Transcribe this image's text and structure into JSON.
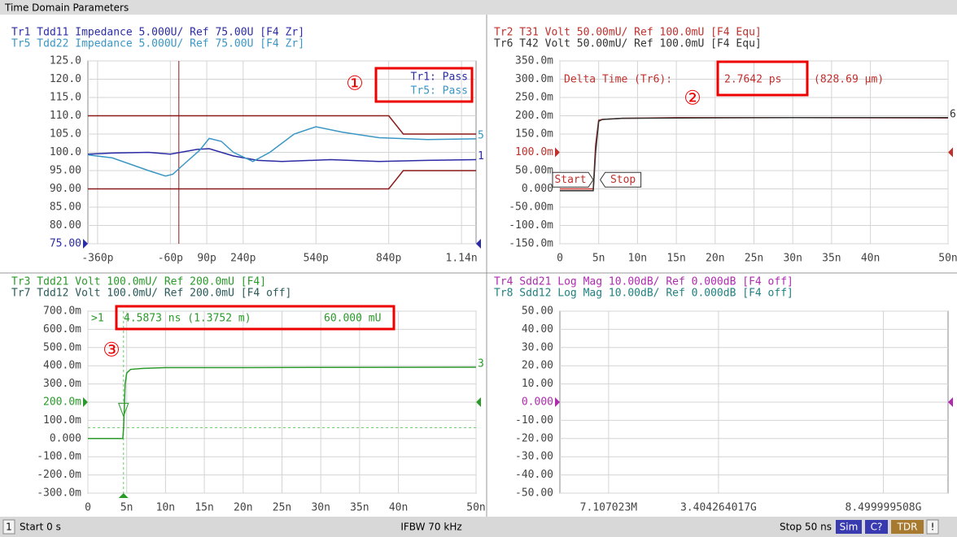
{
  "window": {
    "title": "Time Domain Parameters",
    "status": [
      "1",
      "Start 0 s",
      "IFBW 70 kHz",
      "Stop 50 ns"
    ],
    "buttons": [
      "Sim",
      "C?",
      "TDR",
      "!"
    ]
  },
  "chart_data": [
    {
      "type": "line",
      "xlim": [
        -400,
        1200
      ],
      "ylim": [
        75,
        125
      ],
      "ref_value": 75,
      "yticks": [
        {
          "value": 125,
          "label": "125.0"
        },
        {
          "value": 120,
          "label": "120.0"
        },
        {
          "value": 115,
          "label": "115.0"
        },
        {
          "value": 110,
          "label": "110.0"
        },
        {
          "value": 105,
          "label": "105.0"
        },
        {
          "value": 100,
          "label": "100.0"
        },
        {
          "value": 95,
          "label": "95.00"
        },
        {
          "value": 90,
          "label": "90.00"
        },
        {
          "value": 85,
          "label": "85.00"
        },
        {
          "value": 80,
          "label": "80.00"
        },
        {
          "value": 75,
          "label": "75.00"
        }
      ],
      "xticks": [
        {
          "value": -360,
          "label": "-360p"
        },
        {
          "value": -60,
          "label": "-60p"
        },
        {
          "value": 90,
          "label": "90p"
        },
        {
          "value": 240,
          "label": "240p"
        },
        {
          "value": 540,
          "label": "540p"
        },
        {
          "value": 840,
          "label": "840p"
        },
        {
          "value": 1140,
          "label": "1.14n"
        }
      ],
      "series": [
        {
          "name": "Tr1 Tdd11 Impedance 5.000U/ Ref 75.00U [F4 Zr]",
          "color": "#2b2ba6",
          "end_label": "1",
          "x": [
            -400,
            -300,
            -150,
            -60,
            50,
            100,
            200,
            300,
            400,
            600,
            800,
            1000,
            1200
          ],
          "values": [
            99.5,
            99.8,
            100,
            99.5,
            100.8,
            101,
            99,
            97.8,
            97.5,
            98,
            97.5,
            97.8,
            98
          ]
        },
        {
          "name": "Tr5 Tdd22 Impedance 5.000U/ Ref 75.00U [F4 Zr]",
          "color": "#3a96c4",
          "end_label": "5",
          "x": [
            -400,
            -300,
            -150,
            -80,
            -50,
            0,
            60,
            100,
            150,
            200,
            280,
            350,
            450,
            540,
            650,
            800,
            1000,
            1200
          ],
          "values": [
            99.3,
            98.5,
            95,
            93.5,
            94,
            97,
            100.5,
            103.8,
            103,
            100,
            97.5,
            100,
            105,
            107,
            105.5,
            104,
            103.5,
            103.7
          ]
        }
      ],
      "limits": {
        "color": "#8b1a1a",
        "lines": [
          {
            "x": [
              -400,
              840,
              900,
              1200
            ],
            "values": [
              110,
              110,
              105,
              105
            ]
          },
          {
            "x": [
              -400,
              840,
              900,
              1200
            ],
            "values": [
              90,
              90,
              95,
              95
            ]
          }
        ]
      },
      "marker_x": -25,
      "limit_test": [
        "Tr1: Pass",
        "Tr5: Pass"
      ],
      "callout": "①"
    },
    {
      "type": "line",
      "xlim": [
        0,
        50
      ],
      "ylim": [
        -0.15,
        0.35
      ],
      "ref_value": 0.1,
      "yticks": [
        {
          "value": 0.35,
          "label": "350.0m"
        },
        {
          "value": 0.3,
          "label": "300.0m"
        },
        {
          "value": 0.25,
          "label": "250.0m"
        },
        {
          "value": 0.2,
          "label": "200.0m"
        },
        {
          "value": 0.15,
          "label": "150.0m"
        },
        {
          "value": 0.1,
          "label": "100.0m"
        },
        {
          "value": 0.05,
          "label": "50.00m"
        },
        {
          "value": 0,
          "label": "0.000"
        },
        {
          "value": -0.05,
          "label": "-50.00m"
        },
        {
          "value": -0.1,
          "label": "-100.0m"
        },
        {
          "value": -0.15,
          "label": "-150.0m"
        }
      ],
      "xticks": [
        0,
        {
          "value": 5,
          "label": "5n"
        },
        {
          "value": 10,
          "label": "10n"
        },
        {
          "value": 15,
          "label": "15n"
        },
        {
          "value": 20,
          "label": "20n"
        },
        {
          "value": 25,
          "label": "25n"
        },
        {
          "value": 30,
          "label": "30n"
        },
        {
          "value": 35,
          "label": "35n"
        },
        {
          "value": 40,
          "label": "40n"
        },
        {
          "value": 50,
          "label": "50n"
        }
      ],
      "series": [
        {
          "name": "Tr2 T31 Volt 50.00mU/ Ref 100.0mU [F4 Equ]",
          "color": "#c0302c",
          "x": [
            0,
            4.3,
            4.6,
            5,
            5.5,
            8,
            15,
            30,
            50
          ],
          "values": [
            0,
            0,
            0.12,
            0.188,
            0.19,
            0.193,
            0.195,
            0.195,
            0.194
          ]
        },
        {
          "name": "Tr6 T42 Volt 50.00mU/ Ref 100.0mU [F4 Equ]",
          "color": "#333333",
          "end_label": "6",
          "x": [
            0,
            4.3,
            4.6,
            5,
            5.5,
            8,
            15,
            30,
            50
          ],
          "values": [
            -0.005,
            -0.005,
            0.1,
            0.185,
            0.19,
            0.193,
            0.194,
            0.195,
            0.195
          ]
        }
      ],
      "markers": [
        {
          "label": "Start",
          "x": 4.3,
          "y": 0.025
        },
        {
          "label": "Stop",
          "x": 5.2,
          "y": 0.025
        }
      ],
      "readout": [
        "Delta Time (Tr6):",
        "2.7642 ps",
        "(828.69 µm)"
      ],
      "callout": "②"
    },
    {
      "type": "line",
      "xlim": [
        0,
        50
      ],
      "ylim": [
        -0.3,
        0.7
      ],
      "ref_value": 0.2,
      "yticks": [
        {
          "value": 0.7,
          "label": "700.0m"
        },
        {
          "value": 0.6,
          "label": "600.0m"
        },
        {
          "value": 0.5,
          "label": "500.0m"
        },
        {
          "value": 0.4,
          "label": "400.0m"
        },
        {
          "value": 0.3,
          "label": "300.0m"
        },
        {
          "value": 0.2,
          "label": "200.0m"
        },
        {
          "value": 0.1,
          "label": "100.0m"
        },
        {
          "value": 0,
          "label": "0.000"
        },
        {
          "value": -0.1,
          "label": "-100.0m"
        },
        {
          "value": -0.2,
          "label": "-200.0m"
        },
        {
          "value": -0.3,
          "label": "-300.0m"
        }
      ],
      "xticks": [
        0,
        {
          "value": 5,
          "label": "5n"
        },
        {
          "value": 10,
          "label": "10n"
        },
        {
          "value": 15,
          "label": "15n"
        },
        {
          "value": 20,
          "label": "20n"
        },
        {
          "value": 25,
          "label": "25n"
        },
        {
          "value": 30,
          "label": "30n"
        },
        {
          "value": 35,
          "label": "35n"
        },
        {
          "value": 40,
          "label": "40n"
        },
        {
          "value": 50,
          "label": "50n"
        }
      ],
      "series": [
        {
          "name": "Tr3 Tdd21 Volt 100.0mU/ Ref 200.0mU [F4]",
          "color": "#2a9a2a",
          "end_label": "3",
          "x": [
            0,
            4.5,
            4.6,
            4.8,
            5,
            5.5,
            7,
            10,
            20,
            50
          ],
          "values": [
            0,
            0,
            0.06,
            0.3,
            0.36,
            0.38,
            0.385,
            0.39,
            0.39,
            0.392
          ]
        },
        {
          "name": "Tr7 Tdd12 Volt 100.0mU/ Ref 200.0mU [F4 off]",
          "color": "#2a5a5a"
        }
      ],
      "marker": {
        "x": 4.5873,
        "y": 0.06
      },
      "readout": [
        ">1",
        "4.5873 ns (1.3752 m)",
        "60.000 mU"
      ],
      "callout": "③"
    },
    {
      "type": "line",
      "xlim": [
        -1500000000,
        10500000000
      ],
      "ylim": [
        -50,
        50
      ],
      "ref_value": 0,
      "yticks": [
        {
          "value": 50,
          "label": "50.00"
        },
        {
          "value": 40,
          "label": "40.00"
        },
        {
          "value": 30,
          "label": "30.00"
        },
        {
          "value": 20,
          "label": "20.00"
        },
        {
          "value": 10,
          "label": "10.00"
        },
        {
          "value": 0,
          "label": "0.000"
        },
        {
          "value": -10,
          "label": "-10.00"
        },
        {
          "value": -20,
          "label": "-20.00"
        },
        {
          "value": -30,
          "label": "-30.00"
        },
        {
          "value": -40,
          "label": "-40.00"
        },
        {
          "value": -50,
          "label": "-50.00"
        }
      ],
      "xticks": [
        {
          "value": 7107023,
          "label": "7.107023M"
        },
        {
          "value": 3404264017,
          "label": "3.404264017G"
        },
        {
          "value": 8499999508,
          "label": "8.499999508G"
        }
      ],
      "series": [
        {
          "name": "Tr4 Sdd21 Log Mag 10.00dB/ Ref 0.000dB [F4 off]",
          "color": "#b02ab0"
        },
        {
          "name": "Tr8 Sdd12 Log Mag 10.00dB/ Ref 0.000dB [F4 off]",
          "color": "#208080"
        }
      ]
    }
  ]
}
